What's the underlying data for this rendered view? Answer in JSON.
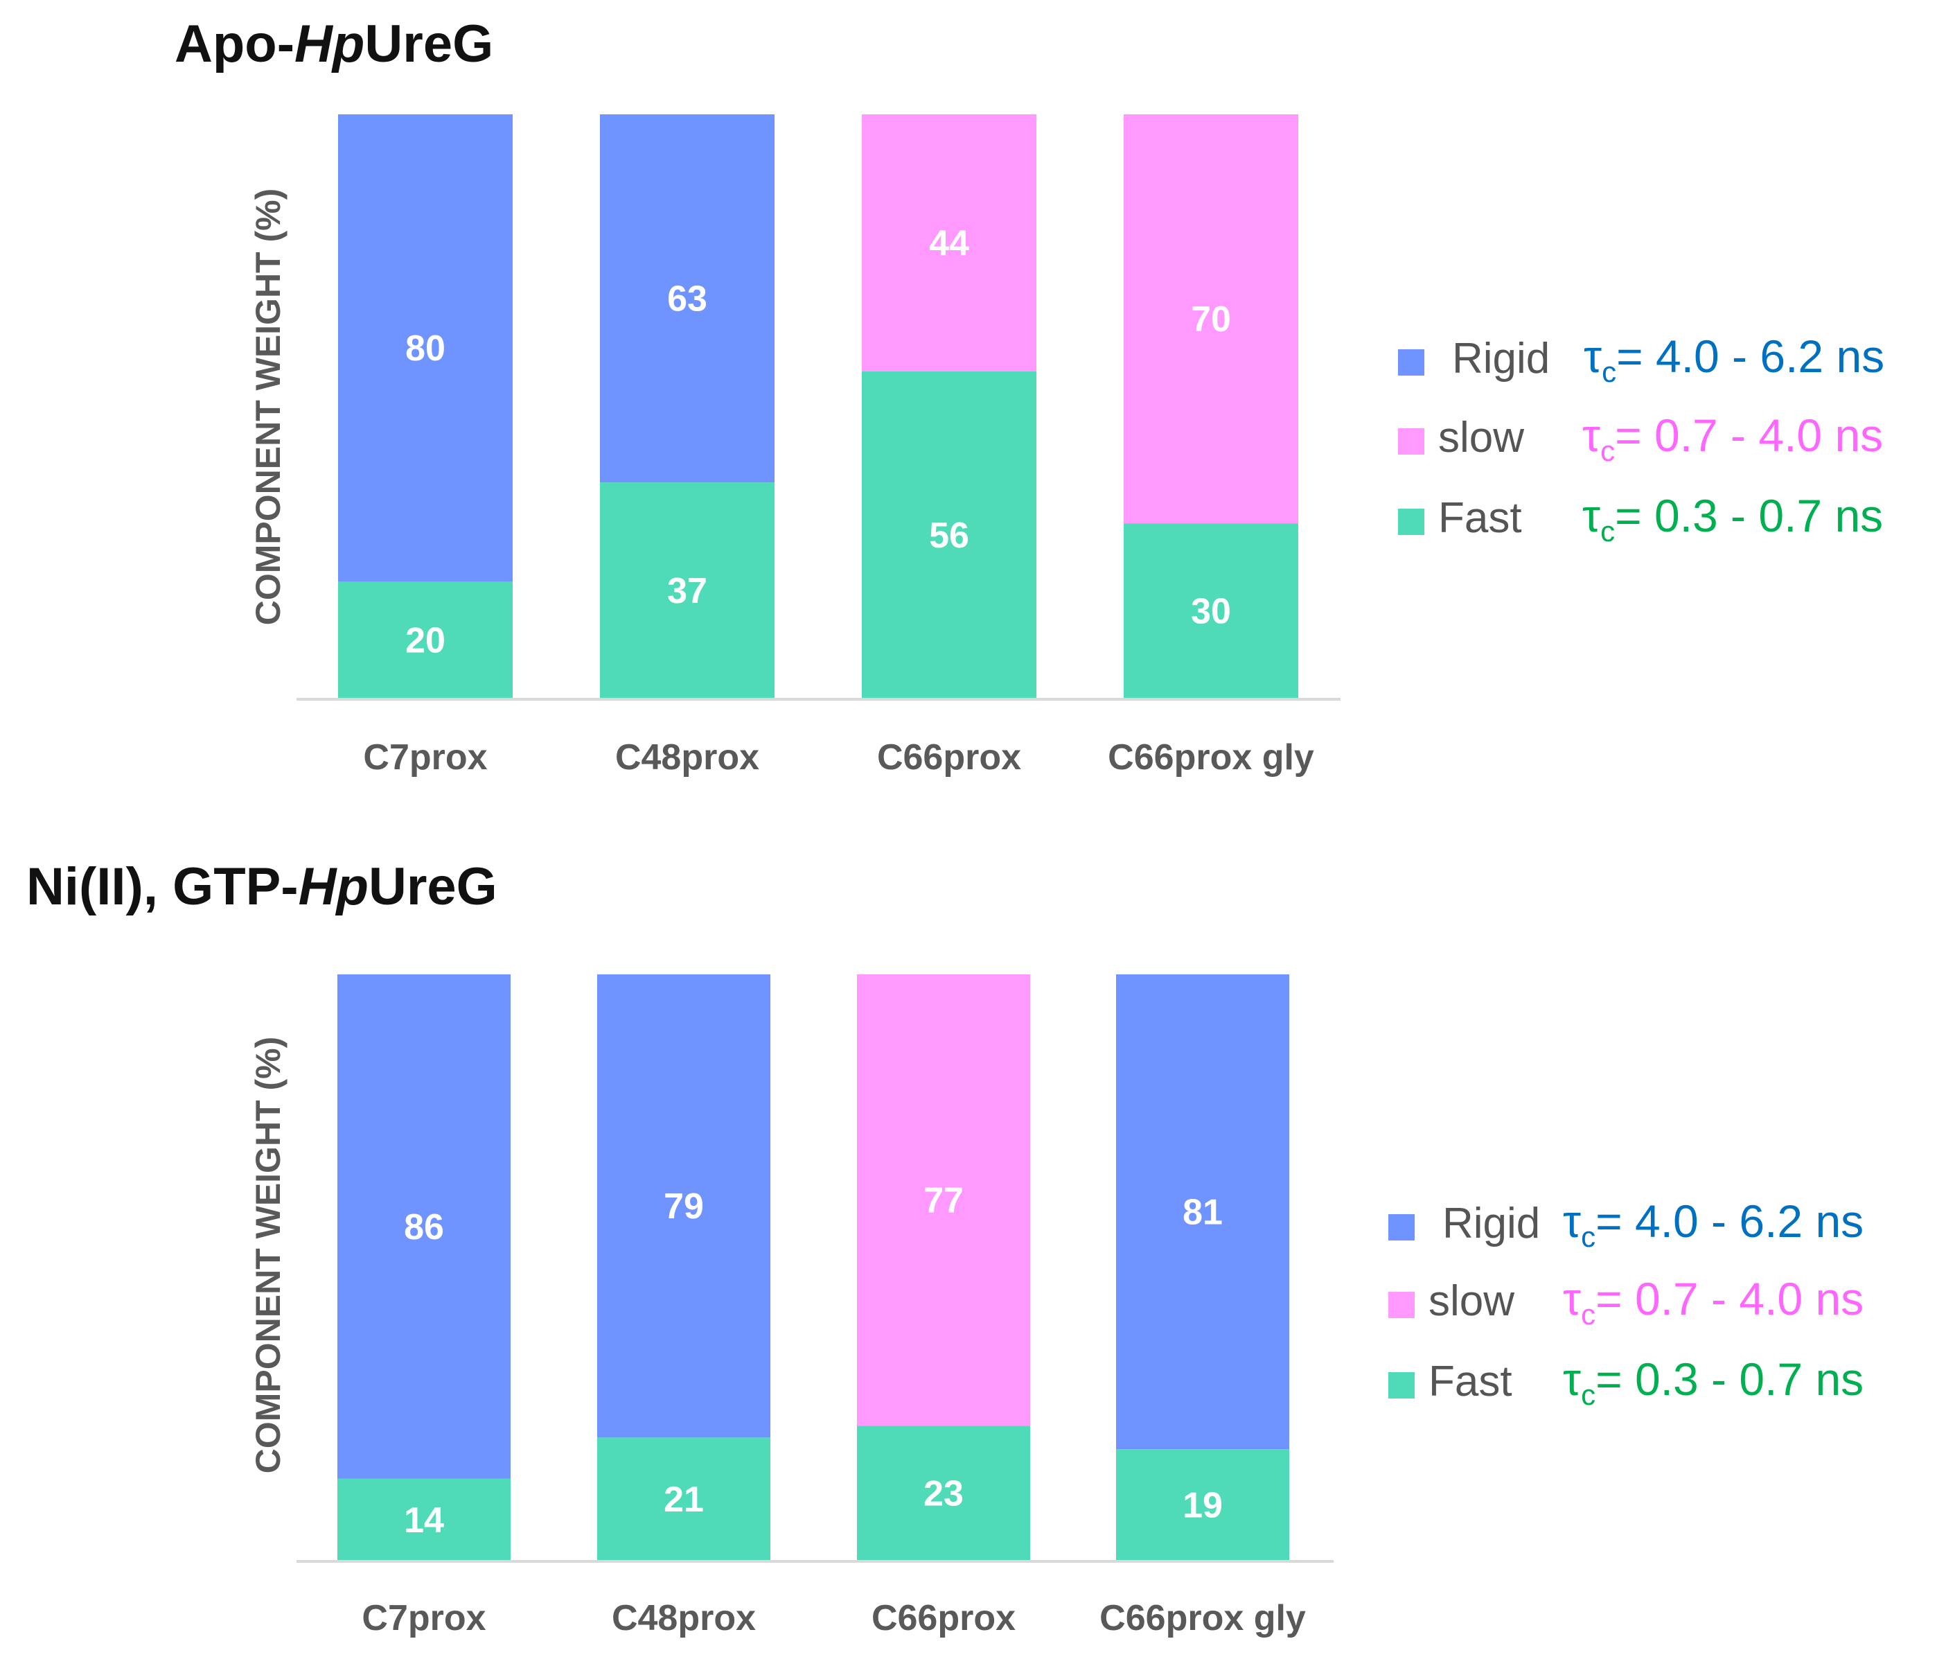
{
  "series_colors": {
    "Rigid": "#7094ff",
    "slow": "#ff99ff",
    "Fast": "#4fdbb8"
  },
  "legend": {
    "items": [
      {
        "label": "Rigid",
        "tau_symbol": "τ",
        "tau_sub": "c",
        "tau_text": "= 4.0 - 6.2 ns",
        "tau_color": "#0070c0"
      },
      {
        "label": "slow",
        "tau_symbol": "τ",
        "tau_sub": "c",
        "tau_text": "= 0.7 - 4.0 ns",
        "tau_color": "#ff66ff"
      },
      {
        "label": "Fast",
        "tau_symbol": "τ",
        "tau_sub": "c",
        "tau_text": "= 0.3 - 0.7 ns",
        "tau_color": "#00b050"
      }
    ]
  },
  "panels": [
    {
      "title_prefix": "Apo-",
      "title_italic": "Hp",
      "title_suffix": "UreG"
    },
    {
      "title_prefix": "Ni(II), GTP-",
      "title_italic": "Hp",
      "title_suffix": "UreG"
    }
  ],
  "chart_data": [
    {
      "type": "bar",
      "stacked": true,
      "title": "Apo-HpUreG",
      "ylabel": "COMPONENT WEIGHT (%)",
      "xlabel": "",
      "ylim": [
        0,
        100
      ],
      "grid": false,
      "categories": [
        "C7prox",
        "C48prox",
        "C66prox",
        "C66prox gly"
      ],
      "series": [
        {
          "name": "Fast",
          "values": [
            20,
            37,
            56,
            30
          ]
        },
        {
          "name": "slow",
          "values": [
            0,
            0,
            44,
            70
          ]
        },
        {
          "name": "Rigid",
          "values": [
            80,
            63,
            0,
            0
          ]
        }
      ]
    },
    {
      "type": "bar",
      "stacked": true,
      "title": "Ni(II), GTP-HpUreG",
      "ylabel": "COMPONENT WEIGHT (%)",
      "xlabel": "",
      "ylim": [
        0,
        100
      ],
      "grid": false,
      "categories": [
        "C7prox",
        "C48prox",
        "C66prox",
        "C66prox gly"
      ],
      "series": [
        {
          "name": "Fast",
          "values": [
            14,
            21,
            23,
            19
          ]
        },
        {
          "name": "slow",
          "values": [
            0,
            0,
            77,
            0
          ]
        },
        {
          "name": "Rigid",
          "values": [
            86,
            79,
            0,
            81
          ]
        }
      ]
    }
  ]
}
